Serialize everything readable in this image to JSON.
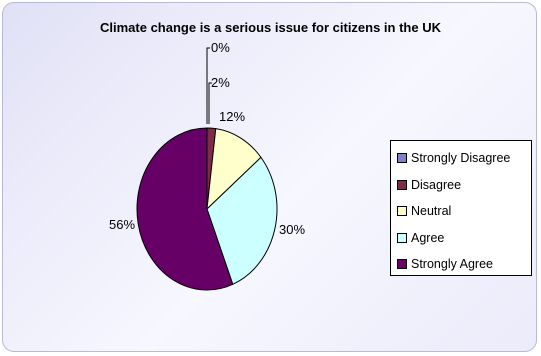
{
  "chart_data": {
    "type": "pie",
    "title": "Climate change is a serious issue for citizens in the UK",
    "categories": [
      "Strongly Disagree",
      "Disagree",
      "Neutral",
      "Agree",
      "Strongly Agree"
    ],
    "values": [
      0,
      2,
      12,
      30,
      56
    ],
    "labels": [
      "0%",
      "2%",
      "12%",
      "30%",
      "56%"
    ],
    "colors": [
      "#8080d0",
      "#7e2b44",
      "#ffffcc",
      "#ccffff",
      "#660066"
    ],
    "legend_position": "right"
  }
}
